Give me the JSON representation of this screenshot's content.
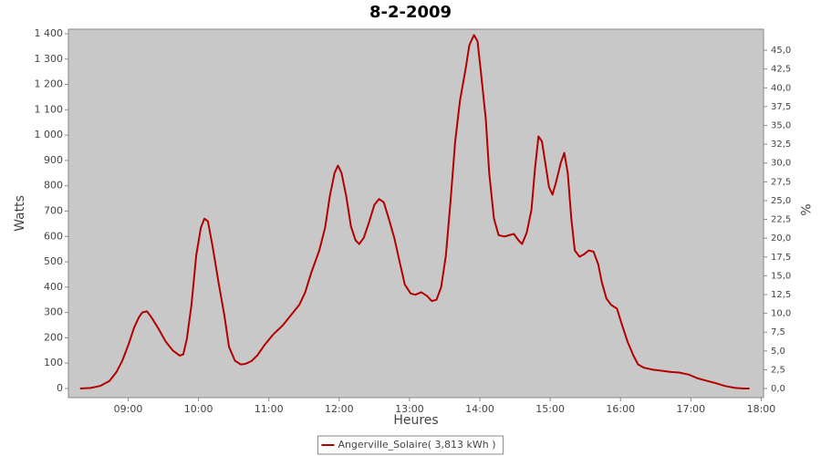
{
  "chart_data": {
    "type": "line",
    "title": "8-2-2009",
    "x_label": "Heures",
    "y_label": "Watts",
    "y2_label": "%",
    "x": [
      "08:19",
      "08:28",
      "08:36",
      "08:44",
      "08:50",
      "08:55",
      "09:00",
      "09:05",
      "09:09",
      "09:12",
      "09:16",
      "09:20",
      "09:26",
      "09:32",
      "09:38",
      "09:44",
      "09:47",
      "09:50",
      "09:54",
      "09:58",
      "10:02",
      "10:05",
      "10:08",
      "10:12",
      "10:17",
      "10:22",
      "10:26",
      "10:31",
      "10:36",
      "10:40",
      "10:45",
      "10:50",
      "10:56",
      "11:04",
      "11:12",
      "11:19",
      "11:26",
      "11:31",
      "11:36",
      "11:43",
      "11:48",
      "11:52",
      "11:56",
      "11:59",
      "12:02",
      "12:06",
      "12:10",
      "12:14",
      "12:17",
      "12:21",
      "12:25",
      "12:30",
      "12:34",
      "12:38",
      "12:42",
      "12:47",
      "12:52",
      "12:56",
      "13:01",
      "13:05",
      "13:10",
      "13:15",
      "13:19",
      "13:23",
      "13:27",
      "13:31",
      "13:35",
      "13:39",
      "13:43",
      "13:48",
      "13:51",
      "13:55",
      "13:58",
      "14:01",
      "14:05",
      "14:08",
      "14:12",
      "14:16",
      "14:21",
      "14:25",
      "14:29",
      "14:33",
      "14:36",
      "14:40",
      "14:44",
      "14:47",
      "14:50",
      "14:53",
      "14:56",
      "14:59",
      "15:02",
      "15:05",
      "15:09",
      "15:12",
      "15:15",
      "15:18",
      "15:21",
      "15:25",
      "15:29",
      "15:33",
      "15:37",
      "15:41",
      "15:44",
      "15:48",
      "15:52",
      "15:57",
      "16:01",
      "16:06",
      "16:11",
      "16:15",
      "16:20",
      "16:27",
      "16:35",
      "16:43",
      "16:50",
      "16:58",
      "17:06",
      "17:14",
      "17:22",
      "17:29",
      "17:37",
      "17:45",
      "17:50"
    ],
    "series": [
      {
        "name": "Angerville_Solaire( 3,813 kWh )",
        "color": "#b40000",
        "values": [
          0,
          2,
          10,
          30,
          65,
          110,
          170,
          240,
          280,
          300,
          305,
          280,
          235,
          185,
          150,
          130,
          135,
          195,
          330,
          525,
          635,
          670,
          660,
          560,
          420,
          290,
          165,
          110,
          95,
          97,
          108,
          130,
          170,
          215,
          250,
          290,
          330,
          380,
          455,
          545,
          635,
          760,
          850,
          880,
          850,
          760,
          640,
          585,
          570,
          595,
          650,
          725,
          748,
          735,
          675,
          595,
          490,
          410,
          375,
          370,
          380,
          365,
          345,
          350,
          400,
          525,
          740,
          975,
          1135,
          1265,
          1355,
          1395,
          1370,
          1245,
          1065,
          850,
          670,
          605,
          600,
          605,
          610,
          585,
          570,
          615,
          705,
          865,
          995,
          975,
          885,
          795,
          765,
          815,
          890,
          930,
          850,
          670,
          545,
          520,
          530,
          545,
          540,
          490,
          420,
          355,
          330,
          315,
          255,
          185,
          130,
          95,
          82,
          75,
          70,
          65,
          63,
          55,
          40,
          30,
          20,
          10,
          3,
          0,
          0
        ]
      }
    ],
    "xlim": [
      "08:09",
      "18:02"
    ],
    "xticks": [
      "09:00",
      "10:00",
      "11:00",
      "12:00",
      "13:00",
      "14:00",
      "15:00",
      "16:00",
      "17:00",
      "18:00"
    ],
    "ylim": [
      -36,
      1418
    ],
    "yticks": [
      0,
      100,
      200,
      300,
      400,
      500,
      600,
      700,
      800,
      900,
      {
        "value": 1000,
        "label": "1 000"
      },
      {
        "value": 1100,
        "label": "1 100"
      },
      {
        "value": 1200,
        "label": "1 200"
      },
      {
        "value": 1300,
        "label": "1 300"
      },
      {
        "value": 1400,
        "label": "1 400"
      }
    ],
    "y2lim": [
      -1.21,
      47.8
    ],
    "y2ticks": [
      {
        "value": 0,
        "label": "0,0"
      },
      {
        "value": 2.5,
        "label": "2,5"
      },
      {
        "value": 5,
        "label": "5,0"
      },
      {
        "value": 7.5,
        "label": "7,5"
      },
      {
        "value": 10,
        "label": "10,0"
      },
      {
        "value": 12.5,
        "label": "12,5"
      },
      {
        "value": 15,
        "label": "15,0"
      },
      {
        "value": 17.5,
        "label": "17,5"
      },
      {
        "value": 20,
        "label": "20,0"
      },
      {
        "value": 22.5,
        "label": "22,5"
      },
      {
        "value": 25,
        "label": "25,0"
      },
      {
        "value": 27.5,
        "label": "27,5"
      },
      {
        "value": 30,
        "label": "30,0"
      },
      {
        "value": 32.5,
        "label": "32,5"
      },
      {
        "value": 35,
        "label": "35,0"
      },
      {
        "value": 37.5,
        "label": "37,5"
      },
      {
        "value": 40,
        "label": "40,0"
      },
      {
        "value": 42.5,
        "label": "42,5"
      },
      {
        "value": 45,
        "label": "45,0"
      }
    ],
    "grid": false,
    "plot_background": "#c8c8c8",
    "legend": "bottom"
  }
}
